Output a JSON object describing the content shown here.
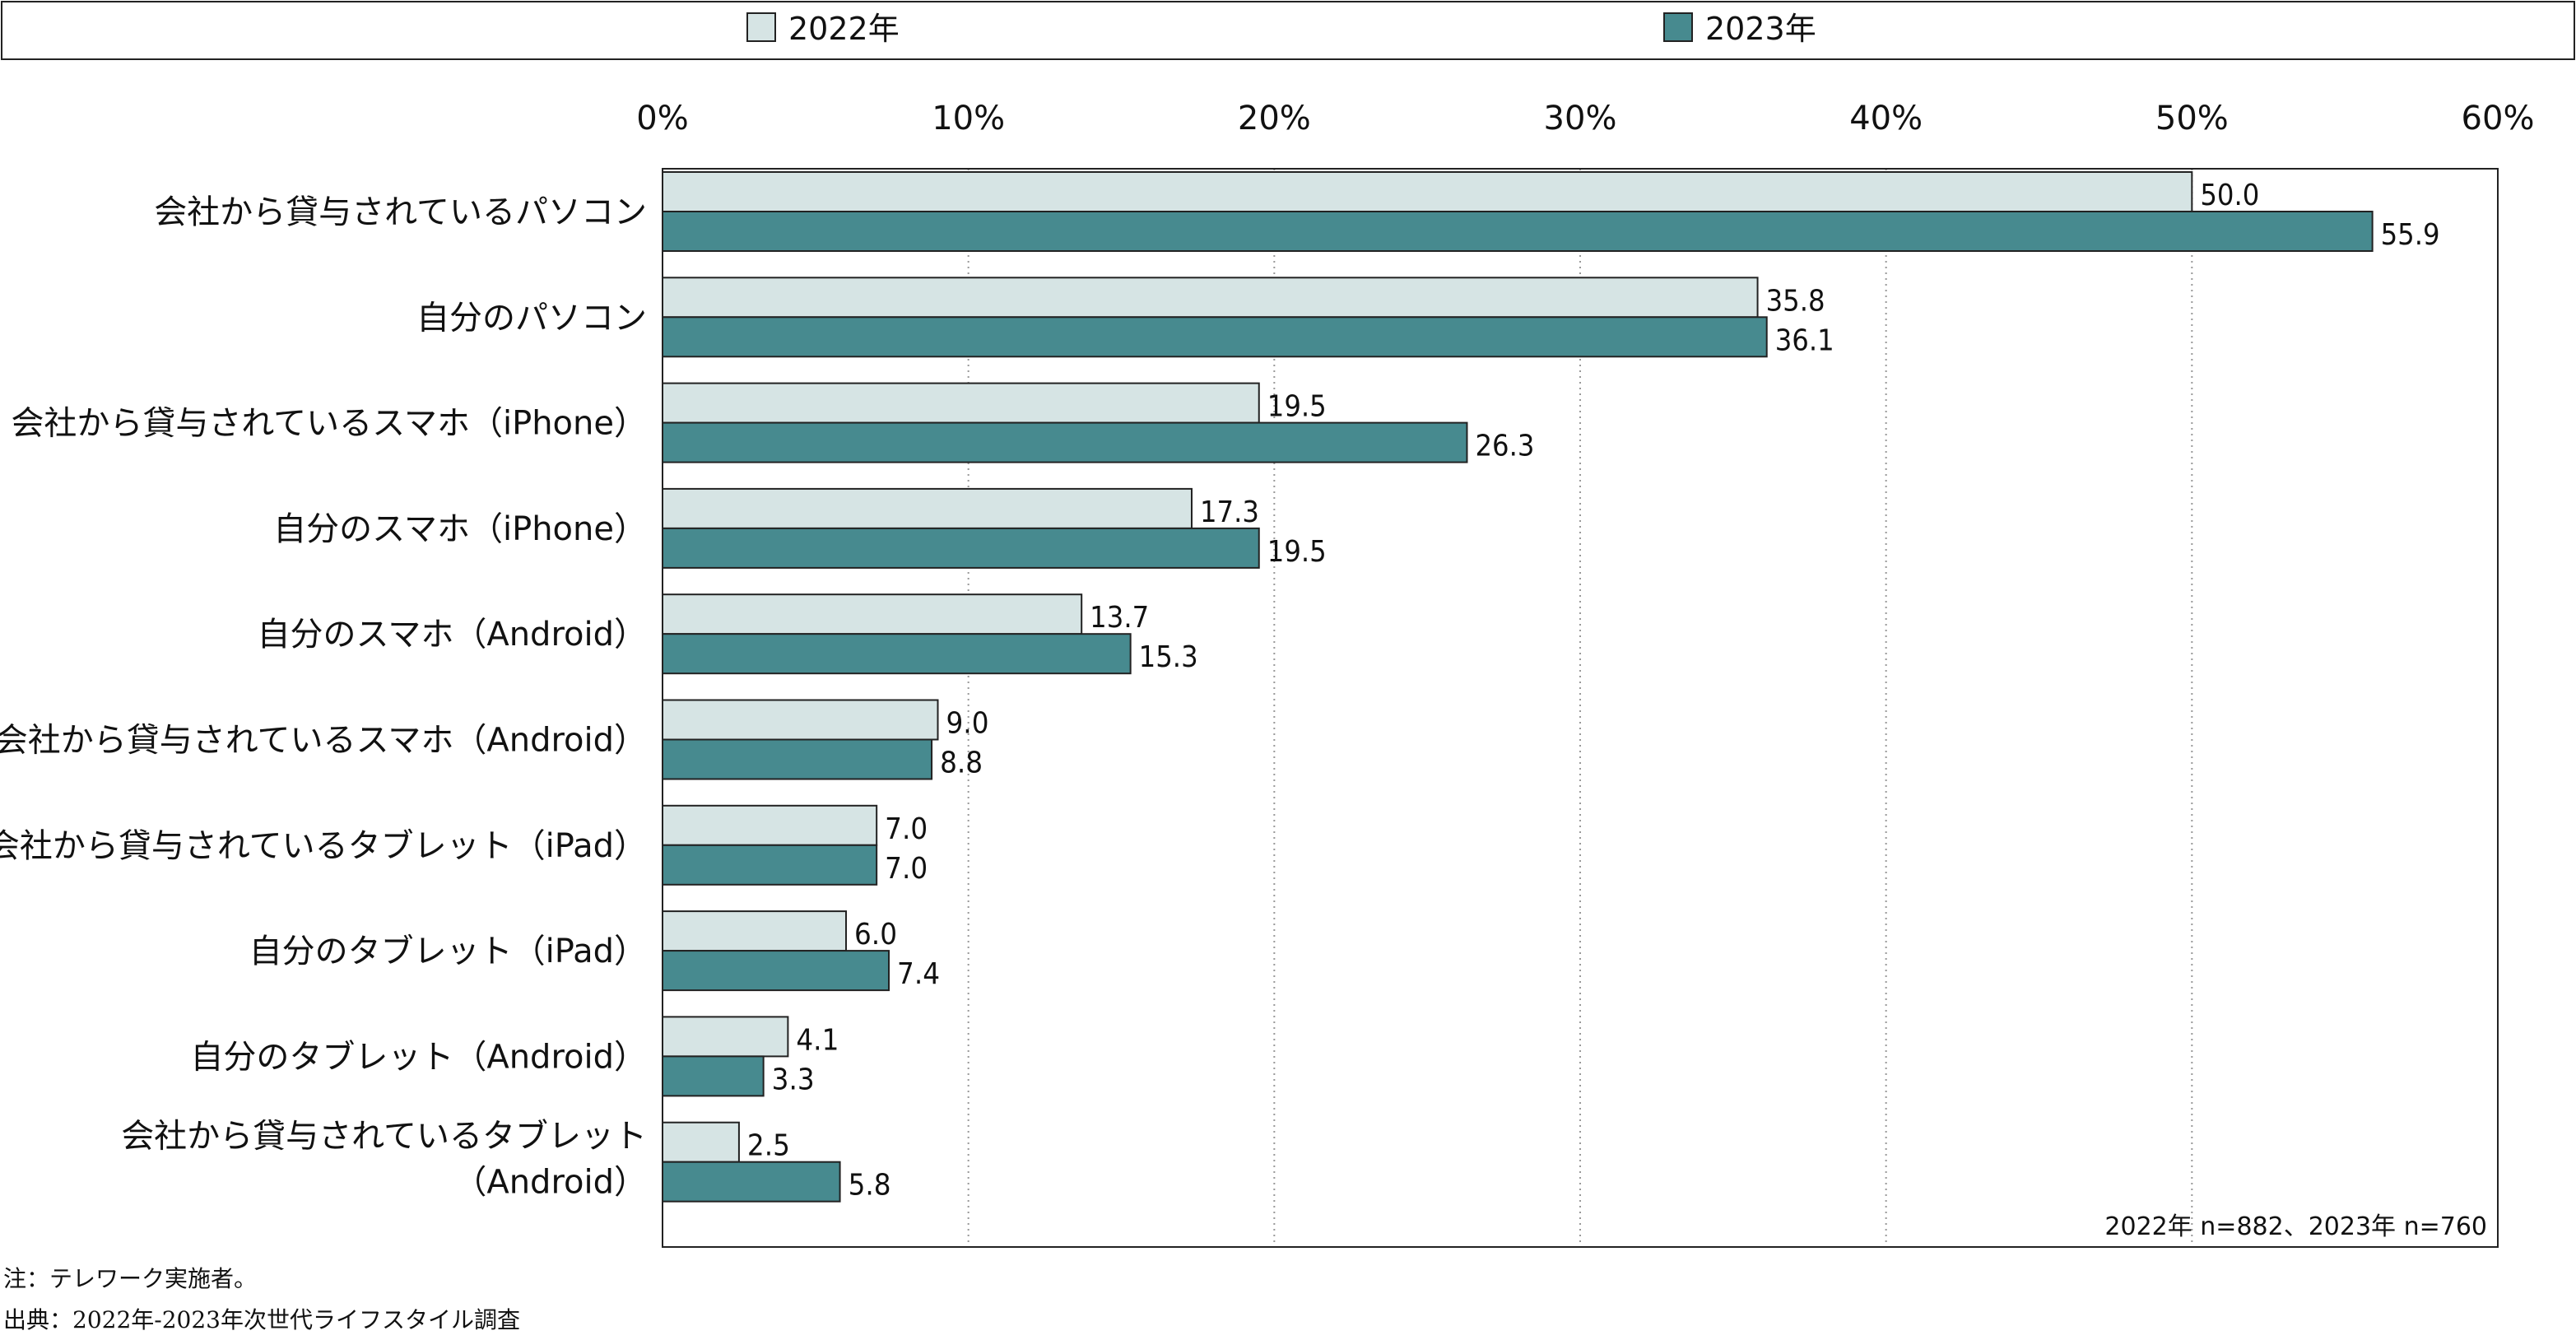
{
  "chart_data": {
    "type": "bar",
    "orientation": "horizontal",
    "categories": [
      [
        "会社から貸与されているパソコン"
      ],
      [
        "自分のパソコン"
      ],
      [
        "会社から貸与されているスマホ（iPhone）"
      ],
      [
        "自分のスマホ（iPhone）"
      ],
      [
        "自分のスマホ（Android）"
      ],
      [
        "会社から貸与されているスマホ（Android）"
      ],
      [
        "会社から貸与されているタブレット（iPad）"
      ],
      [
        "自分のタブレット（iPad）"
      ],
      [
        "自分のタブレット（Android）"
      ],
      [
        "会社から貸与されているタブレット",
        "（Android）"
      ]
    ],
    "series": [
      {
        "name": "2022年",
        "color": "#d6e4e4",
        "values": [
          50.0,
          35.8,
          19.5,
          17.3,
          13.7,
          9.0,
          7.0,
          6.0,
          4.1,
          2.5
        ],
        "labels": [
          "50.0",
          "35.8",
          "19.5",
          "17.3",
          "13.7",
          "9.0",
          "7.0",
          "6.0",
          "4.1",
          "2.5"
        ]
      },
      {
        "name": "2023年",
        "color": "#478a8f",
        "values": [
          55.9,
          36.1,
          26.3,
          19.5,
          15.3,
          8.8,
          7.0,
          7.4,
          3.3,
          5.8
        ],
        "labels": [
          "55.9",
          "36.1",
          "26.3",
          "19.5",
          "15.3",
          "8.8",
          "7.0",
          "7.4",
          "3.3",
          "5.8"
        ]
      }
    ],
    "xlim": [
      0,
      60
    ],
    "ticks": [
      0,
      10,
      20,
      30,
      40,
      50,
      60
    ],
    "tick_labels": [
      "0%",
      "10%",
      "20%",
      "30%",
      "40%",
      "50%",
      "60%"
    ],
    "grid": "vertical-dotted",
    "legend": "top",
    "sample_note": "2022年 n=882、2023年 n=760"
  },
  "notes": {
    "note": "注：テレワーク実施者。",
    "source": "出典：2022年-2023年次世代ライフスタイル調査"
  }
}
